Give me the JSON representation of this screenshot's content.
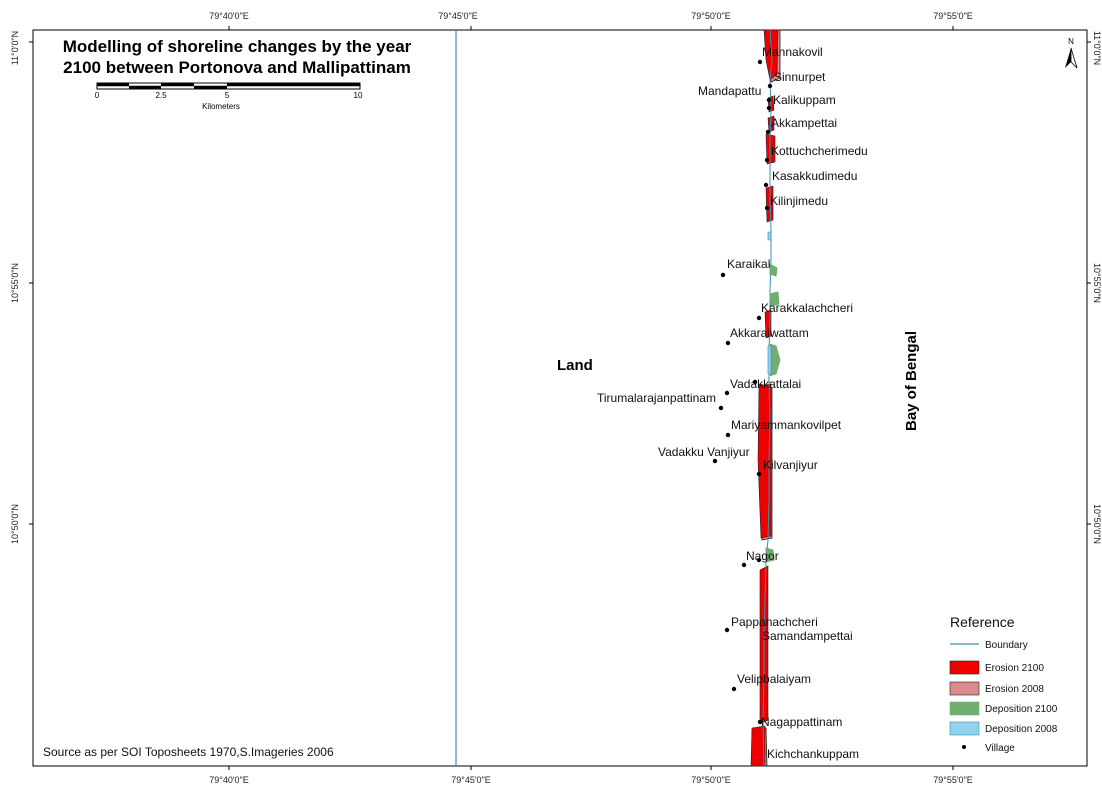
{
  "title": {
    "line1": "Modelling of shoreline changes by the year",
    "line2": "2100 between Portonova and Mallipattinam"
  },
  "scale_bar": {
    "ticks": [
      "0",
      "2.5",
      "5",
      "10"
    ],
    "unit": "Kilometers"
  },
  "graticule": {
    "top": [
      "79°40'0\"E",
      "79°45'0\"E",
      "79°50'0\"E",
      "79°55'0\"E"
    ],
    "bottom": [
      "79°40'0\"E",
      "79°45'0\"E",
      "79°50'0\"E",
      "79°55'0\"E"
    ],
    "left": [
      "11°0'0\"N",
      "10°55'0\"N",
      "10°50'0\"N"
    ],
    "right": [
      "11°0'0\"N",
      "10°55'0\"N",
      "10°50'0\"N"
    ]
  },
  "north_arrow": {
    "label": "N"
  },
  "regions": {
    "land": "Land",
    "sea": "Bay of Bengal"
  },
  "villages": [
    {
      "name": "Mannakovil"
    },
    {
      "name": "Sinnurpet"
    },
    {
      "name": "Mandapattu"
    },
    {
      "name": "Kalikuppam"
    },
    {
      "name": "Akkampettai"
    },
    {
      "name": "Kottuchcherimedu"
    },
    {
      "name": "Kasakkudimedu"
    },
    {
      "name": "Kilinjimedu"
    },
    {
      "name": "Karaikal"
    },
    {
      "name": "Karakkalachcheri"
    },
    {
      "name": "Akkaraiwattam"
    },
    {
      "name": "Vadakkattalai"
    },
    {
      "name": "Tirumalarajanpattinam"
    },
    {
      "name": "Mariyammankovilpet"
    },
    {
      "name": "Vadakku Vanjiyur"
    },
    {
      "name": "Kilvanjiyur"
    },
    {
      "name": "Nagor"
    },
    {
      "name": "Pappanachcheri"
    },
    {
      "name": "Samandampettai"
    },
    {
      "name": "Velipbalaiyam"
    },
    {
      "name": "Nagappattinam"
    },
    {
      "name": "Kichchankuppam"
    }
  ],
  "legend": {
    "title": "Reference",
    "items": [
      {
        "label": "Boundary",
        "type": "line",
        "color": "#3a8fb0"
      },
      {
        "label": "Erosion 2100",
        "type": "fill",
        "color": "#ee0000"
      },
      {
        "label": "Erosion 2008",
        "type": "fill",
        "color": "#d98a8a"
      },
      {
        "label": "Deposition 2100",
        "type": "fill",
        "color": "#6fae6f"
      },
      {
        "label": "Deposition 2008",
        "type": "fill",
        "color": "#8fd3ee"
      },
      {
        "label": "Village",
        "type": "point",
        "color": "#000000"
      }
    ]
  },
  "source": "Source as per SOI Toposheets 1970,S.Imageries 2006",
  "colors": {
    "erosion_2100": "#ee0000",
    "erosion_2008": "#d98a8a",
    "deposition_2100": "#6fae6f",
    "deposition_2008": "#8fd3ee",
    "boundary": "#3a8fb0"
  }
}
